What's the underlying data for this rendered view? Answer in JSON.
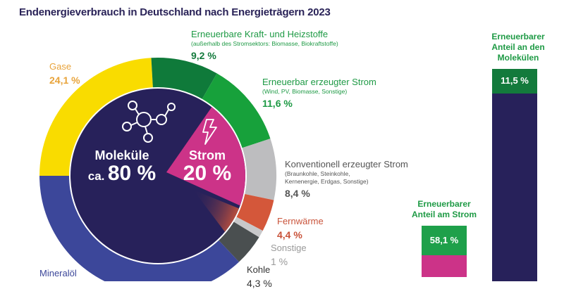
{
  "title": "Endenergieverbrauch in Deutschland nach Energieträgern 2023",
  "chart_data": [
    {
      "type": "pie",
      "title": "Endenergieverbrauch in Deutschland nach Energieträgern 2023",
      "outer_ring": [
        {
          "name": "Gase",
          "value": 24.1,
          "value_label": "24,1 %",
          "color": "#f9dc00",
          "label_color": "#e8a33a"
        },
        {
          "name": "Erneuerbare Kraft- und Heizstoffe",
          "note": "(außerhalb des Stromsektors: Biomasse, Biokraftstoffe)",
          "value": 9.2,
          "value_label": "9,2 %",
          "color": "#0f7a3a",
          "label_color": "#137a3c"
        },
        {
          "name": "Erneuerbar erzeugter Strom",
          "note": "(Wind, PV, Biomasse, Sonstige)",
          "value": 11.6,
          "value_label": "11,6 %",
          "color": "#17a13b",
          "label_color": "#1e9a45"
        },
        {
          "name": "Konventionell erzeugter Strom",
          "note": "(Braunkohle, Steinkohle, Kernenergie, Erdgas, Sonstige)",
          "value": 8.4,
          "value_label": "8,4 %",
          "color": "#bdbdbf",
          "label_color": "#555555"
        },
        {
          "name": "Fernwärme",
          "value": 4.4,
          "value_label": "4,4 %",
          "color": "#d4573a",
          "label_color": "#c9533a"
        },
        {
          "name": "Sonstige",
          "value": 1.0,
          "value_label": "1 %",
          "color": "#c8c8ca",
          "label_color": "#9a9a9a"
        },
        {
          "name": "Kohle",
          "value": 4.3,
          "value_label": "4,3 %",
          "color": "#4a4f50",
          "label_color": "#333333"
        },
        {
          "name": "Mineralöl",
          "value": 37.0,
          "color": "#3c479a",
          "label_color": "#3c479a"
        }
      ],
      "inner_pie": [
        {
          "name": "Moleküle",
          "prefix": "ca.",
          "value": 80,
          "value_label": "80 %",
          "color": "#27215a"
        },
        {
          "name": "Strom",
          "value": 20,
          "value_label": "20 %",
          "color": "#cc3388"
        }
      ],
      "icons": [
        "molecule-icon",
        "lightning-icon"
      ]
    },
    {
      "type": "bar",
      "title": "Erneuerbarer Anteil am Strom",
      "title_lines": [
        "Erneuerbarer",
        "Anteil am Strom"
      ],
      "segments": [
        {
          "name": "erneuerbar",
          "value": 58.1,
          "value_label": "58,1 %",
          "color": "#1ea04a"
        },
        {
          "name": "rest",
          "value": 41.9,
          "color": "#cc3388"
        }
      ]
    },
    {
      "type": "bar",
      "title": "Erneuerbarer Anteil an den Molekülen",
      "title_lines": [
        "Erneuerbarer",
        "Anteil an den",
        "Molekülen"
      ],
      "segments": [
        {
          "name": "erneuerbar",
          "value": 11.5,
          "value_label": "11,5 %",
          "color": "#137a3c"
        },
        {
          "name": "rest",
          "value": 88.5,
          "color": "#27215a"
        }
      ]
    }
  ]
}
